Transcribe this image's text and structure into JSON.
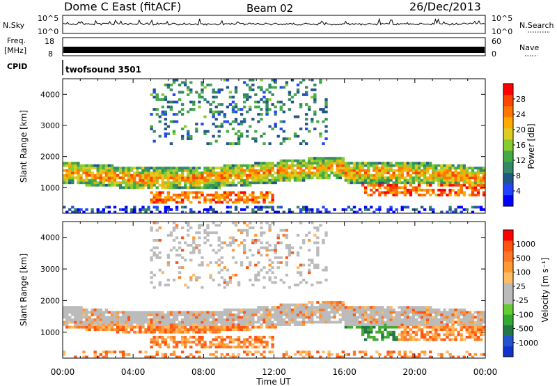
{
  "header": {
    "title": "Dome C East (fitACF)",
    "beam": "Beam 02",
    "date": "26/Dec/2013"
  },
  "top_panels": {
    "nsky_label": "N.Sky",
    "nsky_ticks": [
      "10^5",
      "10^0"
    ],
    "nsearch_label": "N.Search",
    "freq_label_1": "Freq.",
    "freq_label_2": "[MHz]",
    "freq_ticks": [
      "18",
      "8"
    ],
    "nave_label": "Nave",
    "nave_ticks": [
      "60",
      "0"
    ],
    "cpid_label": "CPID",
    "cpid_value": "twofsound 3501"
  },
  "chart_data": [
    {
      "type": "heatmap",
      "name": "power",
      "ylabel": "Slant Range [km]",
      "xlabel": "Time UT",
      "x_ticks": [
        "00:00",
        "04:00",
        "08:00",
        "12:00",
        "16:00",
        "20:00",
        "00:00"
      ],
      "y_ticks": [
        "1000",
        "2000",
        "3000",
        "4000"
      ],
      "ylim": [
        180,
        4500
      ],
      "xlim_hours": [
        0,
        24
      ],
      "colorbar_label": "Power [dB]",
      "colorbar_ticks": [
        "28",
        "24",
        "20",
        "16",
        "12",
        "8",
        "4"
      ],
      "colorbar_colors": [
        "#0000ff",
        "#2244ff",
        "#225588",
        "#338866",
        "#44aa44",
        "#88cc33",
        "#ddcc22",
        "#ffaa00",
        "#ff7700",
        "#ff4400",
        "#ff0000"
      ]
    },
    {
      "type": "heatmap",
      "name": "velocity",
      "ylabel": "Slant Range [km]",
      "xlabel": "Time UT",
      "x_ticks": [
        "00:00",
        "04:00",
        "08:00",
        "12:00",
        "16:00",
        "20:00",
        "00:00"
      ],
      "y_ticks": [
        "1000",
        "2000",
        "3000",
        "4000"
      ],
      "ylim": [
        180,
        4500
      ],
      "xlim_hours": [
        0,
        24
      ],
      "colorbar_label": "Velocity [m s⁻¹]",
      "colorbar_ticks": [
        "1000",
        "500",
        "100",
        "25",
        "-25",
        "-100",
        "-500",
        "-1000"
      ],
      "colorbar_colors": [
        "#1133cc",
        "#2255cc",
        "#227744",
        "#33aa33",
        "#66cc33",
        "#bbbbbb",
        "#bbbbbb",
        "#ffbb66",
        "#ff9933",
        "#ff7722",
        "#ff5511",
        "#ff0000"
      ]
    }
  ]
}
